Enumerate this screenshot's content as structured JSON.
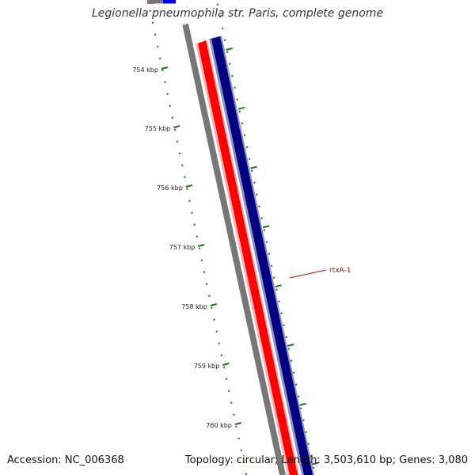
{
  "map": {
    "title": "Legionella pneumophila str. Paris, complete genome",
    "accession_text": "Accession: NC_006368",
    "summary_text": "Topology: circular; Length: 3,503,610 bp; Genes: 3,080",
    "unit": "kbp",
    "tick_labels": [
      "754 kbp",
      "755 kbp",
      "756 kbp",
      "757 kbp",
      "758 kbp",
      "759 kbp",
      "760 kbp"
    ],
    "gene_label": "rtxA-1",
    "colors": {
      "backbone": "#777777",
      "forward_strand": "#ff0000",
      "reverse_strand": "#000080",
      "ticks": "#1a7a1a",
      "gene_label": "#cc0000",
      "upstream_feature": "#0000ff"
    }
  }
}
